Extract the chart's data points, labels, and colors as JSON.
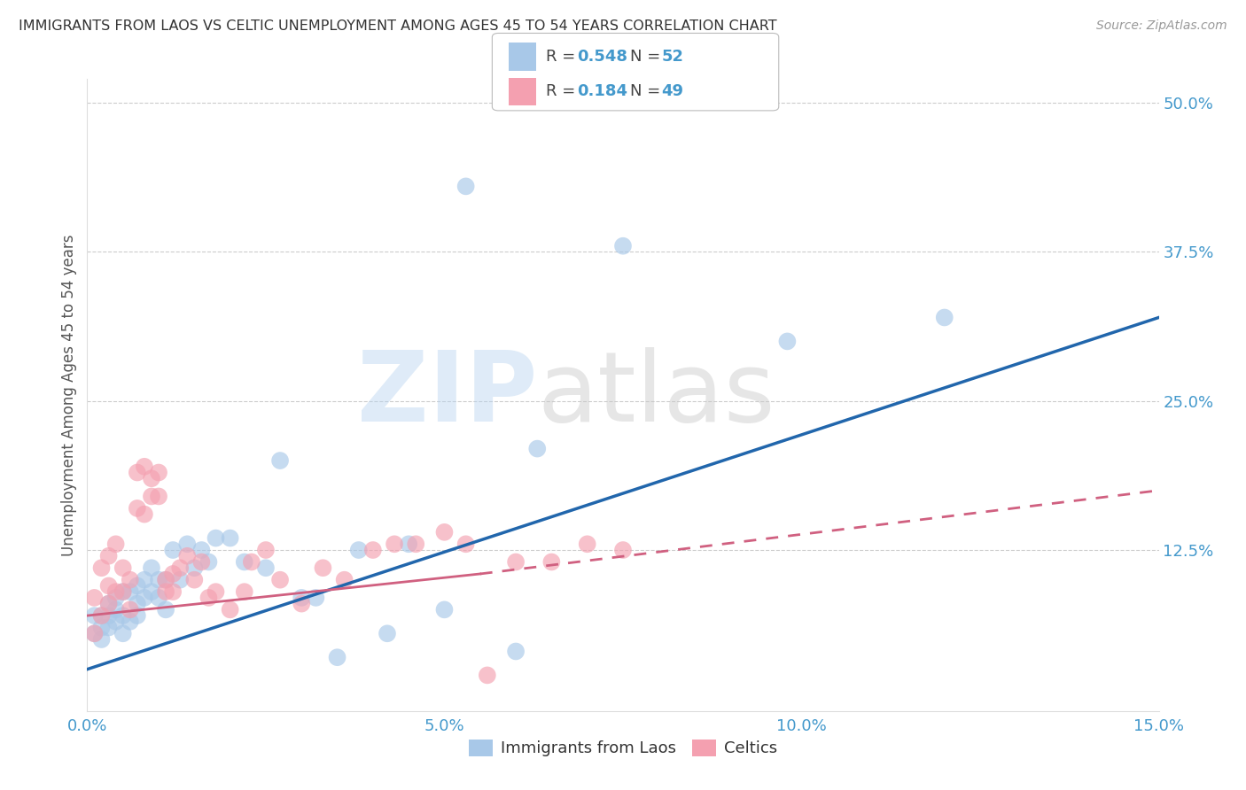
{
  "title": "IMMIGRANTS FROM LAOS VS CELTIC UNEMPLOYMENT AMONG AGES 45 TO 54 YEARS CORRELATION CHART",
  "source": "Source: ZipAtlas.com",
  "ylabel": "Unemployment Among Ages 45 to 54 years",
  "xlim": [
    0.0,
    0.15
  ],
  "ylim": [
    -0.01,
    0.52
  ],
  "xticks": [
    0.0,
    0.05,
    0.1,
    0.15
  ],
  "xticklabels": [
    "0.0%",
    "5.0%",
    "10.0%",
    "15.0%"
  ],
  "yticks_right": [
    0.0,
    0.125,
    0.25,
    0.375,
    0.5
  ],
  "yticklabels_right": [
    "",
    "12.5%",
    "25.0%",
    "37.5%",
    "50.0%"
  ],
  "color_blue": "#a8c8e8",
  "color_pink": "#f4a0b0",
  "color_blue_line": "#2166ac",
  "color_pink_line": "#d06080",
  "color_axis_labels": "#4499cc",
  "background": "#ffffff",
  "trendline_blue": [
    0.0,
    0.15,
    0.025,
    0.32
  ],
  "trendline_pink_solid": [
    0.0,
    0.055,
    0.07,
    0.105
  ],
  "trendline_pink_dashed": [
    0.055,
    0.15,
    0.105,
    0.175
  ],
  "scatter_blue_x": [
    0.001,
    0.001,
    0.002,
    0.002,
    0.002,
    0.003,
    0.003,
    0.003,
    0.004,
    0.004,
    0.004,
    0.005,
    0.005,
    0.005,
    0.006,
    0.006,
    0.007,
    0.007,
    0.007,
    0.008,
    0.008,
    0.009,
    0.009,
    0.01,
    0.01,
    0.011,
    0.011,
    0.012,
    0.013,
    0.014,
    0.015,
    0.016,
    0.017,
    0.018,
    0.02,
    0.022,
    0.025,
    0.027,
    0.03,
    0.032,
    0.035,
    0.038,
    0.042,
    0.045,
    0.05,
    0.053,
    0.06,
    0.063,
    0.075,
    0.098,
    0.12
  ],
  "scatter_blue_y": [
    0.055,
    0.07,
    0.05,
    0.07,
    0.06,
    0.06,
    0.07,
    0.08,
    0.065,
    0.075,
    0.085,
    0.055,
    0.07,
    0.09,
    0.065,
    0.09,
    0.08,
    0.07,
    0.095,
    0.085,
    0.1,
    0.09,
    0.11,
    0.085,
    0.1,
    0.1,
    0.075,
    0.125,
    0.1,
    0.13,
    0.11,
    0.125,
    0.115,
    0.135,
    0.135,
    0.115,
    0.11,
    0.2,
    0.085,
    0.085,
    0.035,
    0.125,
    0.055,
    0.13,
    0.075,
    0.43,
    0.04,
    0.21,
    0.38,
    0.3,
    0.32
  ],
  "scatter_pink_x": [
    0.001,
    0.001,
    0.002,
    0.002,
    0.003,
    0.003,
    0.003,
    0.004,
    0.004,
    0.005,
    0.005,
    0.006,
    0.006,
    0.007,
    0.007,
    0.008,
    0.008,
    0.009,
    0.009,
    0.01,
    0.01,
    0.011,
    0.011,
    0.012,
    0.012,
    0.013,
    0.014,
    0.015,
    0.016,
    0.017,
    0.018,
    0.02,
    0.022,
    0.023,
    0.025,
    0.027,
    0.03,
    0.033,
    0.036,
    0.04,
    0.043,
    0.046,
    0.05,
    0.053,
    0.056,
    0.06,
    0.065,
    0.07,
    0.075
  ],
  "scatter_pink_y": [
    0.055,
    0.085,
    0.07,
    0.11,
    0.08,
    0.095,
    0.12,
    0.09,
    0.13,
    0.09,
    0.11,
    0.075,
    0.1,
    0.16,
    0.19,
    0.155,
    0.195,
    0.17,
    0.185,
    0.17,
    0.19,
    0.09,
    0.1,
    0.09,
    0.105,
    0.11,
    0.12,
    0.1,
    0.115,
    0.085,
    0.09,
    0.075,
    0.09,
    0.115,
    0.125,
    0.1,
    0.08,
    0.11,
    0.1,
    0.125,
    0.13,
    0.13,
    0.14,
    0.13,
    0.02,
    0.115,
    0.115,
    0.13,
    0.125
  ]
}
